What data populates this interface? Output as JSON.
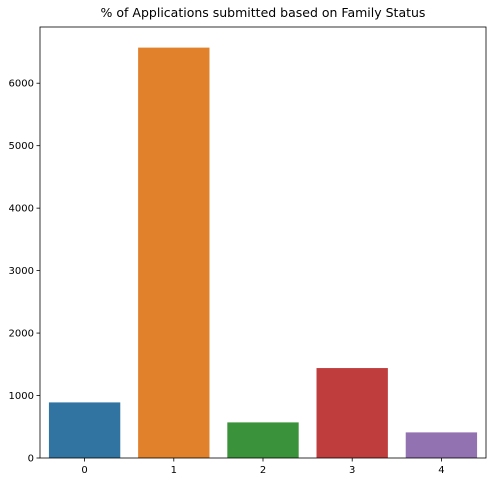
{
  "chart_data": {
    "type": "bar",
    "title": "% of Applications submitted based on Family Status",
    "xlabel": "",
    "ylabel": "",
    "categories": [
      "0",
      "1",
      "2",
      "3",
      "4"
    ],
    "values": [
      890,
      6570,
      570,
      1440,
      410
    ],
    "colors": [
      "#3274a1",
      "#e1812c",
      "#3a923a",
      "#c03d3e",
      "#9372b2"
    ],
    "yticks": [
      0,
      1000,
      2000,
      3000,
      4000,
      5000,
      6000
    ],
    "ylim": [
      0,
      6900
    ],
    "grid": false,
    "legend": "none"
  }
}
